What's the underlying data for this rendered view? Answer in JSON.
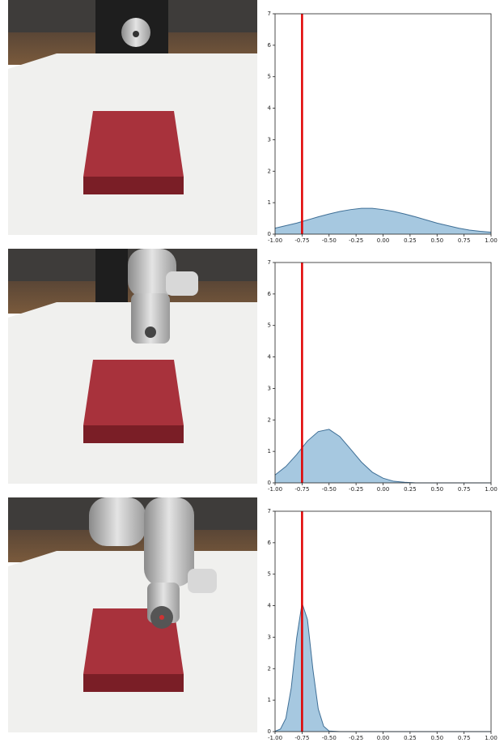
{
  "chart_data": [
    {
      "type": "area",
      "color": "#a6c8e0",
      "line_color": "#3f6f96",
      "x": [
        -1,
        -0.9,
        -0.8,
        -0.7,
        -0.6,
        -0.5,
        -0.4,
        -0.3,
        -0.2,
        -0.1,
        0,
        0.1,
        0.2,
        0.3,
        0.4,
        0.5,
        0.6,
        0.7,
        0.8,
        0.9,
        1
      ],
      "values": [
        0.19,
        0.27,
        0.35,
        0.45,
        0.55,
        0.64,
        0.72,
        0.78,
        0.82,
        0.82,
        0.78,
        0.72,
        0.64,
        0.55,
        0.45,
        0.35,
        0.27,
        0.19,
        0.13,
        0.09,
        0.06
      ],
      "xlim": [
        -1,
        1
      ],
      "ylim": [
        0,
        7
      ],
      "xticks": [
        {
          "value": -1,
          "label": "-1.00"
        },
        {
          "value": -0.75,
          "label": "-0.75"
        },
        {
          "value": -0.5,
          "label": "-0.50"
        },
        {
          "value": -0.25,
          "label": "-0.25"
        },
        {
          "value": 0,
          "label": "0.00"
        },
        {
          "value": 0.25,
          "label": "0.25"
        },
        {
          "value": 0.5,
          "label": "0.50"
        },
        {
          "value": 0.75,
          "label": "0.75"
        },
        {
          "value": 1,
          "label": "1.00"
        }
      ],
      "yticks": [
        0,
        1,
        2,
        3,
        4,
        5,
        6,
        7
      ],
      "vline": -0.75,
      "vline_color": "#e00000"
    },
    {
      "type": "area",
      "color": "#a6c8e0",
      "line_color": "#3f6f96",
      "x": [
        -1,
        -0.9,
        -0.8,
        -0.7,
        -0.6,
        -0.5,
        -0.4,
        -0.3,
        -0.2,
        -0.1,
        0,
        0.1,
        0.2,
        0.3,
        0.4,
        0.5,
        0.6,
        0.7,
        0.8,
        0.9,
        1
      ],
      "values": [
        0.25,
        0.52,
        0.9,
        1.33,
        1.63,
        1.7,
        1.47,
        1.07,
        0.66,
        0.34,
        0.15,
        0.05,
        0.02,
        0,
        0,
        0,
        0,
        0,
        0,
        0,
        0
      ],
      "xlim": [
        -1,
        1
      ],
      "ylim": [
        0,
        7
      ],
      "xticks": [
        {
          "value": -1,
          "label": "-1.00"
        },
        {
          "value": -0.75,
          "label": "-0.75"
        },
        {
          "value": -0.5,
          "label": "-0.50"
        },
        {
          "value": -0.25,
          "label": "-0.25"
        },
        {
          "value": 0,
          "label": "0.00"
        },
        {
          "value": 0.25,
          "label": "0.25"
        },
        {
          "value": 0.5,
          "label": "0.50"
        },
        {
          "value": 0.75,
          "label": "0.75"
        },
        {
          "value": 1,
          "label": "1.00"
        }
      ],
      "yticks": [
        0,
        1,
        2,
        3,
        4,
        5,
        6,
        7
      ],
      "vline": -0.75,
      "vline_color": "#e00000"
    },
    {
      "type": "area",
      "color": "#a6c8e0",
      "line_color": "#3f6f96",
      "x": [
        -1,
        -0.95,
        -0.9,
        -0.85,
        -0.8,
        -0.75,
        -0.7,
        -0.65,
        -0.6,
        -0.55,
        -0.5,
        -0.4,
        0,
        1
      ],
      "values": [
        0.01,
        0.08,
        0.42,
        1.39,
        2.97,
        4.08,
        3.56,
        1.99,
        0.72,
        0.17,
        0.02,
        0,
        0,
        0
      ],
      "xlim": [
        -1,
        1
      ],
      "ylim": [
        0,
        7
      ],
      "xticks": [
        {
          "value": -1,
          "label": "-1.00"
        },
        {
          "value": -0.75,
          "label": "-0.75"
        },
        {
          "value": -0.5,
          "label": "-0.50"
        },
        {
          "value": -0.25,
          "label": "-0.25"
        },
        {
          "value": 0,
          "label": "0.00"
        },
        {
          "value": 0.25,
          "label": "0.25"
        },
        {
          "value": 0.5,
          "label": "0.50"
        },
        {
          "value": 0.75,
          "label": "0.75"
        },
        {
          "value": 1,
          "label": "1.00"
        }
      ],
      "yticks": [
        0,
        1,
        2,
        3,
        4,
        5,
        6,
        7
      ],
      "vline": -0.75,
      "vline_color": "#e00000"
    }
  ]
}
